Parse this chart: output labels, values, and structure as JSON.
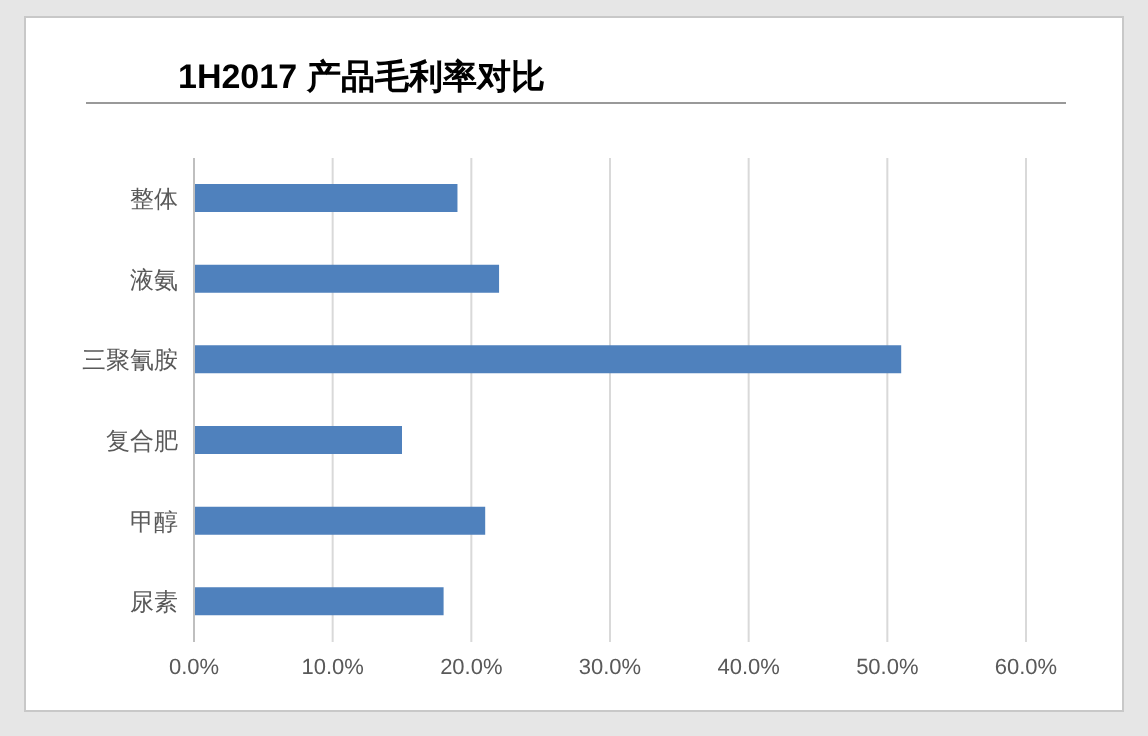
{
  "chart_data": {
    "type": "bar",
    "orientation": "horizontal",
    "title": "1H2017 产品毛利率对比",
    "categories": [
      "整体",
      "液氨",
      "三聚氰胺",
      "复合肥",
      "甲醇",
      "尿素"
    ],
    "values": [
      19,
      22,
      51,
      15,
      21,
      18
    ],
    "color": "#4f81bd",
    "xlim": [
      0,
      60
    ],
    "xticks": [
      {
        "value": 0,
        "label": "0.0%"
      },
      {
        "value": 10,
        "label": "10.0%"
      },
      {
        "value": 20,
        "label": "20.0%"
      },
      {
        "value": 30,
        "label": "30.0%"
      },
      {
        "value": 40,
        "label": "40.0%"
      },
      {
        "value": 50,
        "label": "50.0%"
      },
      {
        "value": 60,
        "label": "60.0%"
      }
    ],
    "grid": "x",
    "legend": false
  }
}
